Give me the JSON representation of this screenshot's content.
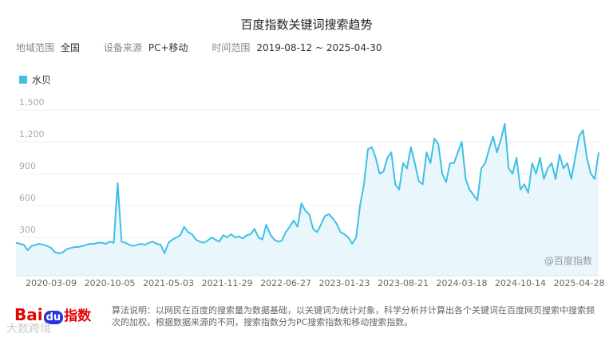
{
  "header": {
    "title": "百度指数关键词搜索趋势",
    "filters": [
      {
        "label": "地域范围",
        "value": "全国"
      },
      {
        "label": "设备来源",
        "value": "PC+移动"
      },
      {
        "label": "时间范围",
        "value": "2019-08-12 ~ 2025-04-30"
      }
    ]
  },
  "chart_data": {
    "type": "line",
    "categories": [
      null,
      null,
      null,
      null,
      null,
      null,
      null,
      null,
      null,
      "2020-03-09",
      null,
      null,
      null,
      null,
      null,
      null,
      null,
      null,
      null,
      null,
      null,
      null,
      null,
      null,
      "2020-10-05",
      null,
      null,
      null,
      null,
      null,
      null,
      null,
      null,
      null,
      null,
      null,
      null,
      null,
      null,
      "2021-05-03",
      null,
      null,
      null,
      null,
      null,
      null,
      null,
      null,
      null,
      null,
      null,
      null,
      null,
      null,
      "2021-11-29",
      null,
      null,
      null,
      null,
      null,
      null,
      null,
      null,
      null,
      null,
      null,
      null,
      null,
      null,
      "2022-06-27",
      null,
      null,
      null,
      null,
      null,
      null,
      null,
      null,
      null,
      null,
      null,
      null,
      null,
      null,
      "2023-01-23",
      null,
      null,
      null,
      null,
      null,
      null,
      null,
      null,
      null,
      null,
      null,
      null,
      null,
      null,
      "2023-08-21",
      null,
      null,
      null,
      null,
      null,
      null,
      null,
      null,
      null,
      null,
      null,
      null,
      null,
      null,
      "2024-03-18",
      null,
      null,
      null,
      null,
      null,
      null,
      null,
      null,
      null,
      null,
      null,
      null,
      null,
      null,
      "2024-10-14",
      null,
      null,
      null,
      null,
      null,
      null,
      null,
      null,
      null,
      null,
      null,
      null,
      null,
      null,
      "2025-04-28",
      null,
      null,
      null,
      null,
      null
    ],
    "series": [
      {
        "name": "水贝",
        "color": "#3fbfe6",
        "values": [
          250,
          240,
          230,
          180,
          220,
          230,
          240,
          230,
          220,
          200,
          160,
          150,
          160,
          190,
          200,
          210,
          210,
          220,
          230,
          240,
          240,
          250,
          250,
          240,
          260,
          250,
          810,
          260,
          250,
          230,
          220,
          230,
          240,
          230,
          250,
          260,
          240,
          230,
          150,
          250,
          280,
          300,
          320,
          400,
          350,
          330,
          280,
          260,
          250,
          270,
          300,
          280,
          260,
          320,
          300,
          330,
          300,
          310,
          290,
          320,
          330,
          380,
          300,
          280,
          420,
          330,
          280,
          260,
          270,
          350,
          400,
          460,
          400,
          620,
          550,
          520,
          380,
          350,
          420,
          500,
          520,
          480,
          430,
          350,
          330,
          300,
          240,
          300,
          600,
          800,
          1130,
          1150,
          1050,
          900,
          920,
          1050,
          1100,
          800,
          750,
          1000,
          950,
          1150,
          1000,
          830,
          800,
          1100,
          1000,
          1230,
          1180,
          900,
          820,
          1000,
          1000,
          1100,
          1200,
          850,
          750,
          700,
          650,
          950,
          1000,
          1130,
          1250,
          1100,
          1220,
          1370,
          950,
          900,
          1050,
          750,
          800,
          720,
          1000,
          900,
          1050,
          850,
          950,
          1000,
          850,
          1080,
          950,
          1000,
          850,
          1050,
          1250,
          1310,
          1050,
          900,
          850,
          1100
        ]
      }
    ],
    "ylim": [
      0,
      1500
    ],
    "yticks": [
      300,
      600,
      900,
      {
        "value": 1200,
        "label": "1,200"
      },
      {
        "value": 1500,
        "label": "1,500"
      }
    ],
    "grid": true,
    "area_fill": "#e9f7fd",
    "watermark": "@百度指数"
  },
  "footer": {
    "logo": [
      "Bai",
      "du",
      "指数"
    ],
    "note": "算法说明：以网民在百度的搜索量为数据基础，以关键词为统计对象，科学分析并计算出各个关键词在百度网页搜索中搜索频次的加权。根据数据来源的不同，搜索指数分为PC搜索指数和移动搜索指数。",
    "source": "大数跨境"
  }
}
